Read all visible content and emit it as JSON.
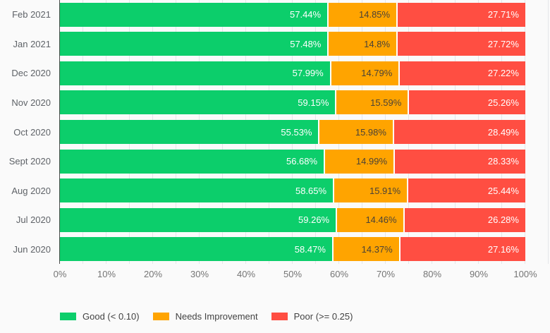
{
  "chart_data": {
    "type": "bar",
    "orientation": "horizontal",
    "stacked": true,
    "unit": "%",
    "xlim": [
      0,
      100
    ],
    "x_ticks": [
      "0%",
      "10%",
      "20%",
      "30%",
      "40%",
      "50%",
      "60%",
      "70%",
      "80%",
      "90%",
      "100%"
    ],
    "grid": {
      "vertical_minor_every_pct": 5,
      "color": "#e4e6e9"
    },
    "legend_position": "bottom",
    "colors": {
      "good": "#0cce6b",
      "needs_improvement": "#ffa400",
      "poor": "#ff4e42"
    },
    "series_names": [
      "Good (< 0.10)",
      "Needs Improvement",
      "Poor (>= 0.25)"
    ],
    "rows": [
      {
        "month": "Feb 2021",
        "good": 57.44,
        "needs_improvement": 14.85,
        "poor": 27.71,
        "good_label": "57.44%",
        "needs_improvement_label": "14.85%",
        "poor_label": "27.71%"
      },
      {
        "month": "Jan 2021",
        "good": 57.48,
        "needs_improvement": 14.8,
        "poor": 27.72,
        "good_label": "57.48%",
        "needs_improvement_label": "14.8%",
        "poor_label": "27.72%"
      },
      {
        "month": "Dec 2020",
        "good": 57.99,
        "needs_improvement": 14.79,
        "poor": 27.22,
        "good_label": "57.99%",
        "needs_improvement_label": "14.79%",
        "poor_label": "27.22%"
      },
      {
        "month": "Nov 2020",
        "good": 59.15,
        "needs_improvement": 15.59,
        "poor": 25.26,
        "good_label": "59.15%",
        "needs_improvement_label": "15.59%",
        "poor_label": "25.26%"
      },
      {
        "month": "Oct 2020",
        "good": 55.53,
        "needs_improvement": 15.98,
        "poor": 28.49,
        "good_label": "55.53%",
        "needs_improvement_label": "15.98%",
        "poor_label": "28.49%"
      },
      {
        "month": "Sept 2020",
        "good": 56.68,
        "needs_improvement": 14.99,
        "poor": 28.33,
        "good_label": "56.68%",
        "needs_improvement_label": "14.99%",
        "poor_label": "28.33%"
      },
      {
        "month": "Aug 2020",
        "good": 58.65,
        "needs_improvement": 15.91,
        "poor": 25.44,
        "good_label": "58.65%",
        "needs_improvement_label": "15.91%",
        "poor_label": "25.44%"
      },
      {
        "month": "Jul 2020",
        "good": 59.26,
        "needs_improvement": 14.46,
        "poor": 26.28,
        "good_label": "59.26%",
        "needs_improvement_label": "14.46%",
        "poor_label": "26.28%"
      },
      {
        "month": "Jun 2020",
        "good": 58.47,
        "needs_improvement": 14.37,
        "poor": 27.16,
        "good_label": "58.47%",
        "needs_improvement_label": "14.37%",
        "poor_label": "27.16%"
      }
    ]
  },
  "legend": {
    "items": [
      {
        "label": "Good (< 0.10)",
        "color": "#0cce6b"
      },
      {
        "label": "Needs Improvement",
        "color": "#ffa400"
      },
      {
        "label": "Poor (>= 0.25)",
        "color": "#ff4e42"
      }
    ]
  }
}
